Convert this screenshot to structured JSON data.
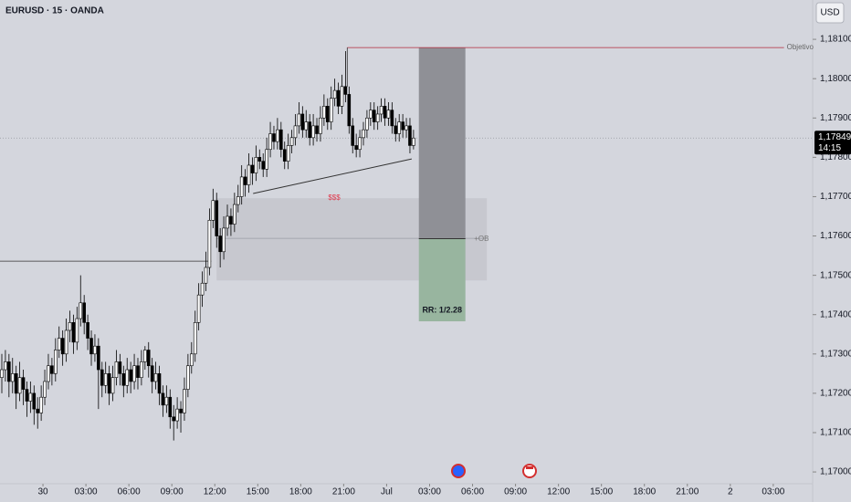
{
  "chart_data": {
    "type": "candlestick",
    "title": "EURUSD · 15 · OANDA",
    "currency_button": "USD",
    "xlim": [
      0,
      227
    ],
    "xticks": [
      {
        "value": 12,
        "label": "30"
      },
      {
        "value": 24,
        "label": "03:00"
      },
      {
        "value": 36,
        "label": "06:00"
      },
      {
        "value": 48,
        "label": "09:00"
      },
      {
        "value": 60,
        "label": "12:00"
      },
      {
        "value": 72,
        "label": "15:00"
      },
      {
        "value": 84,
        "label": "18:00"
      },
      {
        "value": 96,
        "label": "21:00"
      },
      {
        "value": 108,
        "label": "Jul"
      },
      {
        "value": 120,
        "label": "03:00"
      },
      {
        "value": 132,
        "label": "06:00"
      },
      {
        "value": 144,
        "label": "09:00"
      },
      {
        "value": 156,
        "label": "12:00"
      },
      {
        "value": 168,
        "label": "15:00"
      },
      {
        "value": 180,
        "label": "18:00"
      },
      {
        "value": 192,
        "label": "21:00"
      },
      {
        "value": 204,
        "label": "2"
      },
      {
        "value": 216,
        "label": "03:00"
      }
    ],
    "ylim": [
      1.1697,
      1.182
    ],
    "yticks": [
      {
        "value": 1.17,
        "label": "1,17000"
      },
      {
        "value": 1.171,
        "label": "1,17100"
      },
      {
        "value": 1.172,
        "label": "1,17200"
      },
      {
        "value": 1.173,
        "label": "1,17300"
      },
      {
        "value": 1.174,
        "label": "1,17400"
      },
      {
        "value": 1.175,
        "label": "1,17500"
      },
      {
        "value": 1.176,
        "label": "1,17600"
      },
      {
        "value": 1.177,
        "label": "1,17700"
      },
      {
        "value": 1.178,
        "label": "1,17800"
      },
      {
        "value": 1.179,
        "label": "1,17900"
      },
      {
        "value": 1.18,
        "label": "1,18000"
      },
      {
        "value": 1.181,
        "label": "1,18100"
      }
    ],
    "x": [
      0,
      1,
      2,
      3,
      4,
      5,
      6,
      7,
      8,
      9,
      10,
      11,
      12,
      13,
      14,
      15,
      16,
      17,
      18,
      19,
      20,
      21,
      22,
      23,
      24,
      25,
      26,
      27,
      28,
      29,
      30,
      31,
      32,
      33,
      34,
      35,
      36,
      37,
      38,
      39,
      40,
      41,
      42,
      43,
      44,
      45,
      46,
      47,
      48,
      49,
      50,
      51,
      52,
      53,
      54,
      55,
      56,
      57,
      58,
      59,
      60,
      61,
      62,
      63,
      64,
      65,
      66,
      67,
      68,
      69,
      70,
      71,
      72,
      73,
      74,
      75,
      76,
      77,
      78,
      79,
      80,
      81,
      82,
      83,
      84,
      85,
      86,
      87,
      88,
      89,
      90,
      91,
      92,
      93,
      94,
      95,
      96,
      97,
      98,
      99,
      100,
      101,
      102,
      103,
      104,
      105,
      106,
      107,
      108,
      109,
      110,
      111,
      112,
      113,
      114,
      115
    ],
    "ohlc": [
      [
        1.1724,
        1.173,
        1.172,
        1.1726
      ],
      [
        1.1726,
        1.1731,
        1.1723,
        1.1728
      ],
      [
        1.1728,
        1.173,
        1.1719,
        1.1723
      ],
      [
        1.1723,
        1.1729,
        1.172,
        1.1725
      ],
      [
        1.1725,
        1.1727,
        1.1716,
        1.172
      ],
      [
        1.172,
        1.1728,
        1.1718,
        1.1724
      ],
      [
        1.1724,
        1.1726,
        1.1717,
        1.1721
      ],
      [
        1.1721,
        1.1723,
        1.1714,
        1.1718
      ],
      [
        1.1718,
        1.1723,
        1.1715,
        1.172
      ],
      [
        1.172,
        1.1722,
        1.1712,
        1.1716
      ],
      [
        1.1716,
        1.1719,
        1.1711,
        1.1715
      ],
      [
        1.1715,
        1.1722,
        1.1713,
        1.1719
      ],
      [
        1.1719,
        1.1726,
        1.1717,
        1.1723
      ],
      [
        1.1723,
        1.173,
        1.1721,
        1.1727
      ],
      [
        1.1727,
        1.1729,
        1.1722,
        1.1725
      ],
      [
        1.1725,
        1.1734,
        1.1723,
        1.1731
      ],
      [
        1.1731,
        1.1737,
        1.1729,
        1.1734
      ],
      [
        1.1734,
        1.1736,
        1.1727,
        1.173
      ],
      [
        1.173,
        1.1739,
        1.1728,
        1.1736
      ],
      [
        1.1736,
        1.1741,
        1.1733,
        1.1738
      ],
      [
        1.1738,
        1.174,
        1.173,
        1.1733
      ],
      [
        1.1733,
        1.1742,
        1.1731,
        1.1739
      ],
      [
        1.1739,
        1.175,
        1.1737,
        1.1743
      ],
      [
        1.1743,
        1.1745,
        1.1735,
        1.1738
      ],
      [
        1.1738,
        1.174,
        1.1731,
        1.1734
      ],
      [
        1.1734,
        1.1736,
        1.1727,
        1.173
      ],
      [
        1.173,
        1.1735,
        1.1728,
        1.1732
      ],
      [
        1.1732,
        1.1734,
        1.1716,
        1.1726
      ],
      [
        1.1726,
        1.1728,
        1.1719,
        1.1722
      ],
      [
        1.1722,
        1.1728,
        1.172,
        1.1725
      ],
      [
        1.1725,
        1.1727,
        1.1717,
        1.172
      ],
      [
        1.172,
        1.1727,
        1.1718,
        1.1724
      ],
      [
        1.1724,
        1.1731,
        1.1722,
        1.1728
      ],
      [
        1.1728,
        1.173,
        1.1722,
        1.1725
      ],
      [
        1.1725,
        1.1727,
        1.1719,
        1.1722
      ],
      [
        1.1722,
        1.1729,
        1.172,
        1.1726
      ],
      [
        1.1726,
        1.1728,
        1.172,
        1.1723
      ],
      [
        1.1723,
        1.173,
        1.1721,
        1.1727
      ],
      [
        1.1727,
        1.1729,
        1.1721,
        1.1724
      ],
      [
        1.1724,
        1.1731,
        1.1722,
        1.1728
      ],
      [
        1.1728,
        1.1732,
        1.1726,
        1.1731
      ],
      [
        1.1731,
        1.1733,
        1.1724,
        1.1727
      ],
      [
        1.1727,
        1.1729,
        1.172,
        1.1723
      ],
      [
        1.1723,
        1.1728,
        1.1721,
        1.1725
      ],
      [
        1.1725,
        1.1727,
        1.1717,
        1.172
      ],
      [
        1.172,
        1.1722,
        1.1714,
        1.1717
      ],
      [
        1.1717,
        1.1722,
        1.1715,
        1.1719
      ],
      [
        1.1719,
        1.1721,
        1.1711,
        1.1714
      ],
      [
        1.1714,
        1.1717,
        1.1708,
        1.1713
      ],
      [
        1.1713,
        1.1719,
        1.1711,
        1.1716
      ],
      [
        1.1716,
        1.1718,
        1.171,
        1.1715
      ],
      [
        1.1715,
        1.1724,
        1.1713,
        1.1721
      ],
      [
        1.1721,
        1.173,
        1.1719,
        1.1727
      ],
      [
        1.1727,
        1.1733,
        1.1725,
        1.173
      ],
      [
        1.173,
        1.1741,
        1.1728,
        1.1738
      ],
      [
        1.1738,
        1.1748,
        1.1736,
        1.1745
      ],
      [
        1.1745,
        1.1751,
        1.1742,
        1.1748
      ],
      [
        1.1748,
        1.1756,
        1.1746,
        1.1752
      ],
      [
        1.1752,
        1.1767,
        1.175,
        1.1764
      ],
      [
        1.1764,
        1.1772,
        1.1762,
        1.1769
      ],
      [
        1.1769,
        1.1771,
        1.1757,
        1.176
      ],
      [
        1.176,
        1.1762,
        1.1752,
        1.1756
      ],
      [
        1.1756,
        1.1765,
        1.1754,
        1.1762
      ],
      [
        1.1762,
        1.1768,
        1.176,
        1.1765
      ],
      [
        1.1765,
        1.1767,
        1.176,
        1.1763
      ],
      [
        1.1763,
        1.1771,
        1.1761,
        1.1768
      ],
      [
        1.1768,
        1.1773,
        1.1766,
        1.177
      ],
      [
        1.177,
        1.1778,
        1.1768,
        1.1775
      ],
      [
        1.1775,
        1.1777,
        1.177,
        1.1773
      ],
      [
        1.1773,
        1.1781,
        1.1771,
        1.1778
      ],
      [
        1.1778,
        1.178,
        1.1773,
        1.1776
      ],
      [
        1.1776,
        1.1783,
        1.1774,
        1.178
      ],
      [
        1.178,
        1.1782,
        1.1777,
        1.1779
      ],
      [
        1.1779,
        1.1781,
        1.1775,
        1.1777
      ],
      [
        1.1777,
        1.1785,
        1.1775,
        1.1782
      ],
      [
        1.1782,
        1.1789,
        1.178,
        1.1786
      ],
      [
        1.1786,
        1.1788,
        1.1782,
        1.1784
      ],
      [
        1.1784,
        1.179,
        1.1782,
        1.1787
      ],
      [
        1.1787,
        1.1789,
        1.178,
        1.1782
      ],
      [
        1.1782,
        1.1784,
        1.1777,
        1.1779
      ],
      [
        1.1779,
        1.1786,
        1.1777,
        1.1783
      ],
      [
        1.1783,
        1.1787,
        1.1781,
        1.1785
      ],
      [
        1.1785,
        1.1791,
        1.1783,
        1.1788
      ],
      [
        1.1788,
        1.1794,
        1.1786,
        1.1791
      ],
      [
        1.1791,
        1.1793,
        1.1785,
        1.1787
      ],
      [
        1.1787,
        1.1792,
        1.1785,
        1.1789
      ],
      [
        1.1789,
        1.1791,
        1.1783,
        1.1785
      ],
      [
        1.1785,
        1.1791,
        1.1783,
        1.1788
      ],
      [
        1.1788,
        1.179,
        1.1784,
        1.1786
      ],
      [
        1.1786,
        1.1793,
        1.1784,
        1.179
      ],
      [
        1.179,
        1.1796,
        1.1788,
        1.1793
      ],
      [
        1.1793,
        1.1795,
        1.1787,
        1.1789
      ],
      [
        1.1789,
        1.1798,
        1.1787,
        1.1795
      ],
      [
        1.1795,
        1.18,
        1.1793,
        1.1797
      ],
      [
        1.1797,
        1.1799,
        1.1791,
        1.1793
      ],
      [
        1.1793,
        1.1801,
        1.1791,
        1.1798
      ],
      [
        1.1798,
        1.1807,
        1.1794,
        1.1796
      ],
      [
        1.1796,
        1.1798,
        1.1786,
        1.1788
      ],
      [
        1.1788,
        1.179,
        1.1781,
        1.1783
      ],
      [
        1.1783,
        1.1786,
        1.178,
        1.1782
      ],
      [
        1.1782,
        1.1787,
        1.178,
        1.1785
      ],
      [
        1.1785,
        1.1789,
        1.1783,
        1.1787
      ],
      [
        1.1787,
        1.1792,
        1.1785,
        1.179
      ],
      [
        1.179,
        1.1794,
        1.1788,
        1.1792
      ],
      [
        1.1792,
        1.1794,
        1.1787,
        1.1789
      ],
      [
        1.1789,
        1.1793,
        1.1787,
        1.1791
      ],
      [
        1.1791,
        1.1795,
        1.1789,
        1.1793
      ],
      [
        1.1793,
        1.1795,
        1.1788,
        1.179
      ],
      [
        1.179,
        1.1794,
        1.1788,
        1.1792
      ],
      [
        1.1792,
        1.1794,
        1.1786,
        1.1788
      ],
      [
        1.1788,
        1.179,
        1.1784,
        1.1786
      ],
      [
        1.1786,
        1.1791,
        1.1784,
        1.1789
      ],
      [
        1.1789,
        1.1791,
        1.1785,
        1.1787
      ],
      [
        1.1787,
        1.179,
        1.1785,
        1.1788
      ],
      [
        1.1788,
        1.179,
        1.1781,
        1.1783
      ],
      [
        1.1783,
        1.1787,
        1.1782,
        1.17849
      ]
    ],
    "level_line": {
      "value": 1.17536,
      "x": [
        0,
        59
      ]
    },
    "target_line": {
      "label": "Objetivo",
      "value": 1.18079,
      "x": [
        97,
        219
      ]
    },
    "zone": {
      "label": "+OB",
      "top": 1.17696,
      "bottom": 1.17487,
      "mid": 1.17594,
      "x": [
        60.5,
        136
      ]
    },
    "position": {
      "label": "RR: 1/2.28",
      "stop": 1.18079,
      "entry": 1.17593,
      "target": 1.17383,
      "x": [
        117,
        130
      ]
    },
    "trendline": {
      "label": "$$$",
      "x": [
        70.7,
        115
      ],
      "y": [
        1.17708,
        1.17796
      ]
    },
    "last_price": {
      "value": 1.17849,
      "label": "1,17849",
      "countdown": "14:15"
    }
  }
}
